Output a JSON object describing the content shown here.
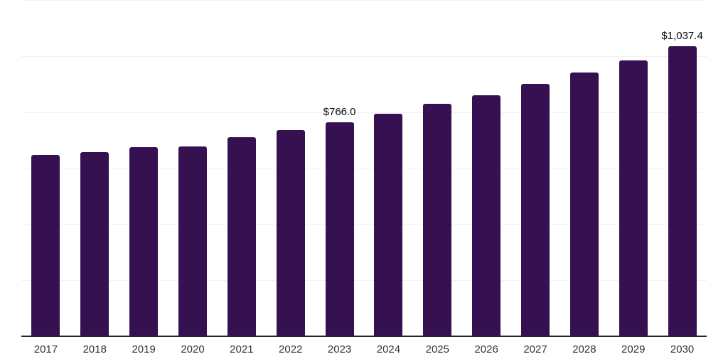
{
  "chart_data": {
    "type": "bar",
    "title": "",
    "xlabel": "",
    "ylabel": "",
    "categories": [
      "2017",
      "2018",
      "2019",
      "2020",
      "2021",
      "2022",
      "2023",
      "2024",
      "2025",
      "2026",
      "2027",
      "2028",
      "2029",
      "2030"
    ],
    "values": [
      650.0,
      660.0,
      676.7,
      680.2,
      712.0,
      737.2,
      766.0,
      796.2,
      831.0,
      863.3,
      902.9,
      944.0,
      986.1,
      1037.4
    ],
    "point_labels": [
      "",
      "",
      "",
      "",
      "",
      "",
      "$766.0",
      "",
      "",
      "",
      "",
      "",
      "",
      "$1,037.4"
    ],
    "ylim": [
      0,
      1200
    ],
    "grid_step": 200,
    "grid_on": true,
    "legend": "none",
    "colors": {
      "bar": "#361152",
      "axis_line": "#262626",
      "gridline": "#f2f2f2",
      "tick_label": "#333333",
      "value_label": "#0a0a0a",
      "background": "#ffffff"
    }
  }
}
